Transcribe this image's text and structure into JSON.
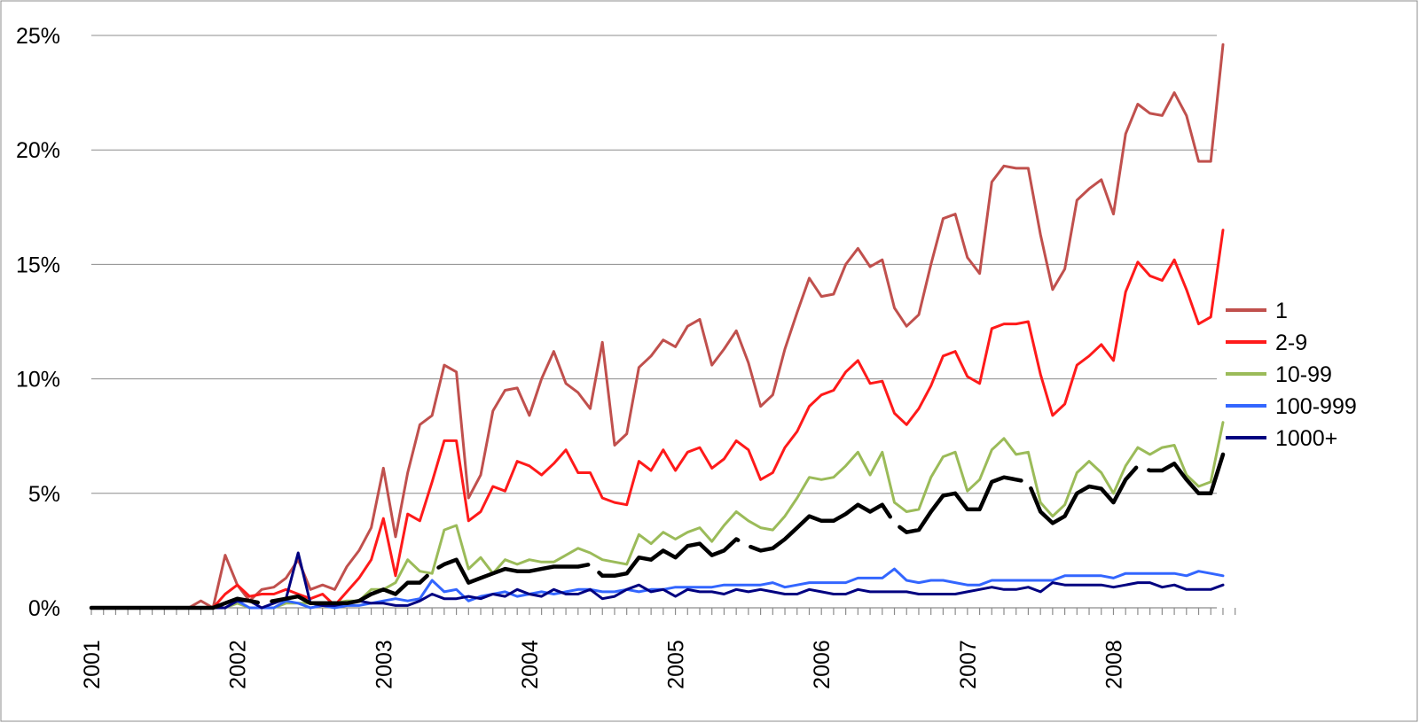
{
  "chart_data": {
    "type": "line",
    "title": "",
    "xlabel": "",
    "ylabel": "",
    "x_start": "2001-01",
    "x_end": "2008-09",
    "x_tick_labels": [
      "2001",
      "2002",
      "2003",
      "2004",
      "2005",
      "2006",
      "2007",
      "2008"
    ],
    "y_tick_labels": [
      "0%",
      "5%",
      "10%",
      "15%",
      "20%",
      "25%"
    ],
    "ylim": [
      0,
      25
    ],
    "grid": true,
    "legend_position": "right",
    "series": [
      {
        "name": "1",
        "color": "#c0504d",
        "values": [
          0,
          0,
          0,
          0,
          0,
          0,
          0,
          0,
          0,
          0.3,
          0,
          2.3,
          1.0,
          0.3,
          0.8,
          0.9,
          1.3,
          2.1,
          0.8,
          1.0,
          0.8,
          1.8,
          2.5,
          3.5,
          6.1,
          3.1,
          5.9,
          8.0,
          8.4,
          10.6,
          10.3,
          4.8,
          5.8,
          8.6,
          9.5,
          9.6,
          8.4,
          10.0,
          11.2,
          9.8,
          9.4,
          8.7,
          11.6,
          7.1,
          7.6,
          10.5,
          11.0,
          11.7,
          11.4,
          12.3,
          12.6,
          10.6,
          11.3,
          12.1,
          10.7,
          8.8,
          9.3,
          11.3,
          12.9,
          14.4,
          13.6,
          13.7,
          15.0,
          15.7,
          14.9,
          15.2,
          13.1,
          12.3,
          12.8,
          15.0,
          17.0,
          17.2,
          15.3,
          14.6,
          18.6,
          19.3,
          19.2,
          19.2,
          16.3,
          13.9,
          14.8,
          17.8,
          18.3,
          18.7,
          17.2,
          20.7,
          22.0,
          21.6,
          21.5,
          22.5,
          21.5,
          19.5,
          19.5,
          24.6
        ]
      },
      {
        "name": "2-9",
        "color": "#ff1a1a",
        "values": [
          0,
          0,
          0,
          0,
          0,
          0,
          0,
          0,
          0,
          0,
          0,
          0.6,
          1.0,
          0.5,
          0.6,
          0.6,
          0.8,
          0.6,
          0.4,
          0.6,
          0.1,
          0.7,
          1.3,
          2.1,
          3.9,
          1.4,
          4.1,
          3.8,
          5.5,
          7.3,
          7.3,
          3.8,
          4.2,
          5.3,
          5.1,
          6.4,
          6.2,
          5.8,
          6.3,
          6.9,
          5.9,
          5.9,
          4.8,
          4.6,
          4.5,
          6.4,
          6.0,
          6.9,
          6.0,
          6.8,
          7.0,
          6.1,
          6.5,
          7.3,
          6.9,
          5.6,
          5.9,
          7.0,
          7.7,
          8.8,
          9.3,
          9.5,
          10.3,
          10.8,
          9.8,
          9.9,
          8.5,
          8.0,
          8.7,
          9.7,
          11.0,
          11.2,
          10.1,
          9.8,
          12.2,
          12.4,
          12.4,
          12.5,
          10.2,
          8.4,
          8.9,
          10.6,
          11.0,
          11.5,
          10.8,
          13.8,
          15.1,
          14.5,
          14.3,
          15.2,
          13.9,
          12.4,
          12.7,
          16.5
        ]
      },
      {
        "name": "10-99",
        "color": "#9bbb59",
        "values": [
          0,
          0,
          0,
          0,
          0,
          0,
          0,
          0,
          0,
          0,
          0,
          0,
          0.2,
          0,
          0,
          0,
          0.2,
          0.2,
          0.2,
          0.1,
          0.2,
          0.3,
          0.3,
          0.8,
          0.8,
          1.1,
          2.1,
          1.6,
          1.5,
          3.4,
          3.6,
          1.7,
          2.2,
          1.5,
          2.1,
          1.9,
          2.1,
          2.0,
          2.0,
          2.3,
          2.6,
          2.4,
          2.1,
          2.0,
          1.9,
          3.2,
          2.8,
          3.3,
          3.0,
          3.3,
          3.5,
          2.9,
          3.6,
          4.2,
          3.8,
          3.5,
          3.4,
          4.0,
          4.8,
          5.7,
          5.6,
          5.7,
          6.2,
          6.8,
          5.8,
          6.8,
          4.6,
          4.2,
          4.3,
          5.7,
          6.6,
          6.8,
          5.1,
          5.6,
          6.9,
          7.4,
          6.7,
          6.8,
          4.6,
          4.0,
          4.5,
          5.9,
          6.4,
          5.9,
          5.0,
          6.2,
          7.0,
          6.7,
          7.0,
          7.1,
          5.8,
          5.3,
          5.5,
          8.1
        ]
      },
      {
        "name": "100-999",
        "color": "#3366ff",
        "values": [
          0,
          0,
          0,
          0,
          0,
          0,
          0,
          0,
          0,
          0,
          0,
          0,
          0.3,
          0,
          0,
          0,
          0.3,
          0.2,
          0,
          0.1,
          0,
          0.1,
          0.1,
          0.2,
          0.3,
          0.4,
          0.3,
          0.4,
          1.2,
          0.7,
          0.8,
          0.3,
          0.5,
          0.6,
          0.7,
          0.5,
          0.6,
          0.7,
          0.6,
          0.7,
          0.8,
          0.8,
          0.7,
          0.7,
          0.8,
          0.7,
          0.8,
          0.8,
          0.9,
          0.9,
          0.9,
          0.9,
          1.0,
          1.0,
          1.0,
          1.0,
          1.1,
          0.9,
          1.0,
          1.1,
          1.1,
          1.1,
          1.1,
          1.3,
          1.3,
          1.3,
          1.7,
          1.2,
          1.1,
          1.2,
          1.2,
          1.1,
          1.0,
          1.0,
          1.2,
          1.2,
          1.2,
          1.2,
          1.2,
          1.2,
          1.4,
          1.4,
          1.4,
          1.4,
          1.3,
          1.5,
          1.5,
          1.5,
          1.5,
          1.5,
          1.4,
          1.6,
          1.5,
          1.4
        ]
      },
      {
        "name": "1000+",
        "color": "#000080",
        "values": [
          0,
          0,
          0,
          0,
          0,
          0,
          0,
          0,
          0,
          0,
          0,
          0,
          0.3,
          0.3,
          0,
          0.2,
          0.4,
          2.4,
          0.2,
          0.1,
          0.1,
          0.2,
          0.3,
          0.2,
          0.2,
          0.1,
          0.1,
          0.3,
          0.6,
          0.4,
          0.4,
          0.5,
          0.4,
          0.6,
          0.5,
          0.8,
          0.6,
          0.5,
          0.8,
          0.6,
          0.6,
          0.8,
          0.4,
          0.5,
          0.8,
          1.0,
          0.7,
          0.8,
          0.5,
          0.8,
          0.7,
          0.7,
          0.6,
          0.8,
          0.7,
          0.8,
          0.7,
          0.6,
          0.6,
          0.8,
          0.7,
          0.6,
          0.6,
          0.8,
          0.7,
          0.7,
          0.7,
          0.7,
          0.6,
          0.6,
          0.6,
          0.6,
          0.7,
          0.8,
          0.9,
          0.8,
          0.8,
          0.9,
          0.7,
          1.1,
          1.0,
          1.0,
          1.0,
          1.0,
          0.9,
          1.0,
          1.1,
          1.1,
          0.9,
          1.0,
          0.8,
          0.8,
          0.8,
          1.0
        ]
      },
      {
        "name": "",
        "color": "#000000",
        "values": [
          0,
          0,
          0,
          0,
          0,
          0,
          0,
          0,
          0,
          0,
          0,
          0.2,
          0.4,
          0.3,
          0.2,
          0.3,
          0.4,
          0.5,
          0.2,
          0.2,
          0.2,
          0.2,
          0.3,
          0.6,
          0.8,
          0.6,
          1.1,
          1.1,
          1.6,
          1.9,
          2.1,
          1.1,
          1.3,
          1.5,
          1.7,
          1.6,
          1.6,
          1.7,
          1.8,
          1.8,
          1.8,
          1.9,
          1.4,
          1.4,
          1.5,
          2.2,
          2.1,
          2.5,
          2.2,
          2.7,
          2.8,
          2.3,
          2.5,
          3.0,
          2.7,
          2.5,
          2.6,
          3.0,
          3.5,
          4.0,
          3.8,
          3.8,
          4.1,
          4.5,
          4.2,
          4.5,
          3.7,
          3.3,
          3.4,
          4.2,
          4.9,
          5.0,
          4.3,
          4.3,
          5.5,
          5.7,
          5.6,
          5.5,
          4.2,
          3.7,
          4.0,
          5.0,
          5.3,
          5.2,
          4.6,
          5.6,
          6.2,
          6.0,
          6.0,
          6.3,
          5.6,
          5.0,
          5.0,
          6.7
        ]
      }
    ]
  }
}
